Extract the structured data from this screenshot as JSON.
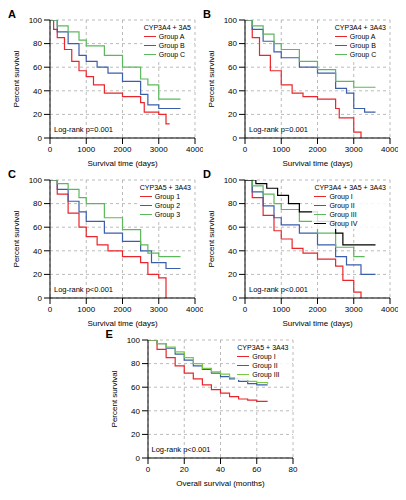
{
  "chart_data": [
    {
      "type": "line",
      "title": "A",
      "legend_title": "CYP3A4 + 3A5",
      "annotation": "Log-rank p=0.001",
      "x_label": "Survival time (days)",
      "y_label": "Percent survival",
      "xlim": [
        0,
        4000
      ],
      "xticks": [
        0,
        1000,
        2000,
        3000,
        4000
      ],
      "ylim": [
        0,
        100
      ],
      "yticks": [
        0,
        20,
        40,
        60,
        80,
        100
      ],
      "grid": true,
      "legend": "upper right",
      "line_style": "step",
      "series": [
        {
          "name": "Group A",
          "color": "#e8262b",
          "x": [
            0,
            100,
            200,
            400,
            600,
            800,
            1000,
            1200,
            1500,
            2000,
            2500,
            2600,
            3000,
            3200,
            3300
          ],
          "values": [
            100,
            92,
            85,
            75,
            65,
            57,
            52,
            45,
            38,
            35,
            30,
            22,
            20,
            12,
            12
          ]
        },
        {
          "name": "Group B",
          "color": "#3b5eab",
          "x": [
            0,
            200,
            500,
            800,
            1000,
            1300,
            1600,
            2000,
            2500,
            2700,
            3000,
            3600
          ],
          "values": [
            100,
            90,
            80,
            70,
            65,
            60,
            55,
            48,
            37,
            28,
            25,
            25
          ]
        },
        {
          "name": "Group C",
          "color": "#5cb85c",
          "x": [
            0,
            200,
            500,
            800,
            1000,
            1500,
            2000,
            2500,
            2700,
            3000,
            3600
          ],
          "values": [
            100,
            95,
            90,
            83,
            78,
            70,
            60,
            50,
            45,
            33,
            33
          ]
        }
      ]
    },
    {
      "type": "line",
      "title": "B",
      "legend_title": "CYP3A4 + 3A43",
      "annotation": "Log-rank p=0.001",
      "x_label": "Survival time (days)",
      "y_label": "Percent survival",
      "xlim": [
        0,
        4000
      ],
      "xticks": [
        0,
        1000,
        2000,
        3000,
        4000
      ],
      "ylim": [
        0,
        100
      ],
      "yticks": [
        0,
        20,
        40,
        60,
        80,
        100
      ],
      "grid": true,
      "legend": "upper right",
      "line_style": "step",
      "series": [
        {
          "name": "Group A",
          "color": "#e8262b",
          "x": [
            0,
            200,
            400,
            700,
            1000,
            1300,
            1600,
            2000,
            2500,
            2600,
            3000,
            3200
          ],
          "values": [
            100,
            85,
            70,
            57,
            45,
            38,
            35,
            33,
            25,
            17,
            5,
            0
          ]
        },
        {
          "name": "Group B",
          "color": "#3b5eab",
          "x": [
            0,
            200,
            500,
            800,
            1000,
            1500,
            2000,
            2500,
            2800,
            3000,
            3300,
            3600
          ],
          "values": [
            100,
            92,
            82,
            73,
            68,
            60,
            55,
            42,
            38,
            25,
            22,
            22
          ]
        },
        {
          "name": "Group C",
          "color": "#5cb85c",
          "x": [
            0,
            200,
            500,
            800,
            1000,
            1500,
            2000,
            2500,
            3000,
            3600
          ],
          "values": [
            100,
            95,
            88,
            80,
            75,
            65,
            58,
            48,
            43,
            43
          ]
        }
      ]
    },
    {
      "type": "line",
      "title": "C",
      "legend_title": "CYP3A5 + 3A43",
      "annotation": "Log-rank p<0.001",
      "x_label": "Survival time (days)",
      "y_label": "Percent survival",
      "xlim": [
        0,
        4000
      ],
      "xticks": [
        0,
        1000,
        2000,
        3000,
        4000
      ],
      "ylim": [
        0,
        100
      ],
      "yticks": [
        0,
        20,
        40,
        60,
        80,
        100
      ],
      "grid": true,
      "legend": "upper right",
      "line_style": "step",
      "series": [
        {
          "name": "Group 1",
          "color": "#e8262b",
          "x": [
            0,
            200,
            500,
            800,
            1000,
            1300,
            1600,
            2000,
            2500,
            2700,
            3000,
            3200
          ],
          "values": [
            100,
            88,
            72,
            60,
            52,
            45,
            40,
            35,
            30,
            20,
            17,
            0
          ]
        },
        {
          "name": "Group 2",
          "color": "#3b5eab",
          "x": [
            0,
            200,
            500,
            800,
            1000,
            1500,
            2000,
            2500,
            2800,
            3200,
            3600
          ],
          "values": [
            100,
            92,
            82,
            73,
            65,
            55,
            48,
            40,
            30,
            25,
            25
          ]
        },
        {
          "name": "Group 3",
          "color": "#5cb85c",
          "x": [
            0,
            200,
            500,
            800,
            1000,
            1500,
            2000,
            2500,
            2700,
            3000,
            3600
          ],
          "values": [
            100,
            97,
            92,
            85,
            80,
            68,
            58,
            45,
            38,
            35,
            35
          ]
        }
      ]
    },
    {
      "type": "line",
      "title": "D",
      "legend_title": "CYP3A4 + 3A5 + 3A43",
      "annotation": "Log-rank p<0.001",
      "x_label": "Survival time (days)",
      "y_label": "Percent survival",
      "xlim": [
        0,
        4000
      ],
      "xticks": [
        0,
        1000,
        2000,
        3000,
        4000
      ],
      "ylim": [
        0,
        100
      ],
      "yticks": [
        0,
        20,
        40,
        60,
        80,
        100
      ],
      "grid": true,
      "legend": "upper right",
      "line_style": "step",
      "series": [
        {
          "name": "Group I",
          "color": "#e8262b",
          "x": [
            0,
            200,
            500,
            800,
            1000,
            1300,
            1600,
            2000,
            2500,
            2700,
            3000,
            3200
          ],
          "values": [
            100,
            85,
            70,
            57,
            50,
            42,
            38,
            33,
            27,
            15,
            5,
            0
          ]
        },
        {
          "name": "Group II",
          "color": "#3b5eab",
          "x": [
            0,
            200,
            500,
            800,
            1000,
            1500,
            2000,
            2500,
            2800,
            3200,
            3600
          ],
          "values": [
            100,
            90,
            78,
            68,
            62,
            55,
            45,
            35,
            28,
            20,
            20
          ]
        },
        {
          "name": "Group III",
          "color": "#5cb85c",
          "x": [
            0,
            200,
            500,
            800,
            1000,
            1500,
            2000,
            2500,
            3000,
            3300
          ],
          "values": [
            100,
            95,
            88,
            80,
            75,
            65,
            55,
            43,
            35,
            35
          ]
        },
        {
          "name": "Group IV",
          "color": "#000000",
          "x": [
            0,
            300,
            600,
            900,
            1200,
            1500,
            2000,
            2500,
            2700,
            3600
          ],
          "values": [
            100,
            97,
            93,
            87,
            80,
            73,
            65,
            55,
            45,
            45
          ]
        }
      ]
    },
    {
      "type": "line",
      "title": "E",
      "legend_title": "CYP3A5 + 3A43",
      "annotation": "Log-rank p<0.001",
      "x_label": "Overall survival (months)",
      "y_label": "Percent survival",
      "xlim": [
        0,
        80
      ],
      "xticks": [
        0,
        20,
        40,
        60,
        80
      ],
      "ylim": [
        0,
        100
      ],
      "yticks": [
        0,
        20,
        40,
        60,
        80,
        100
      ],
      "grid": true,
      "legend": "upper right",
      "line_style": "step",
      "series": [
        {
          "name": "Group I",
          "color": "#e8262b",
          "x": [
            0,
            5,
            10,
            15,
            20,
            25,
            30,
            35,
            40,
            45,
            50,
            55,
            60,
            66
          ],
          "values": [
            100,
            92,
            85,
            78,
            72,
            67,
            62,
            58,
            55,
            52,
            50,
            49,
            48,
            48
          ]
        },
        {
          "name": "Group II",
          "color": "#3b5eab",
          "x": [
            0,
            5,
            10,
            15,
            20,
            25,
            30,
            35,
            40,
            45,
            50,
            55,
            60,
            66
          ],
          "values": [
            100,
            97,
            93,
            88,
            83,
            78,
            75,
            72,
            69,
            67,
            65,
            63,
            62,
            62
          ]
        },
        {
          "name": "Group III",
          "color": "#7ac943",
          "x": [
            0,
            5,
            10,
            15,
            20,
            25,
            30,
            35,
            40,
            45,
            50,
            55,
            60,
            66
          ],
          "values": [
            100,
            97,
            94,
            90,
            85,
            80,
            76,
            73,
            71,
            68,
            67,
            65,
            64,
            63
          ]
        }
      ]
    }
  ]
}
